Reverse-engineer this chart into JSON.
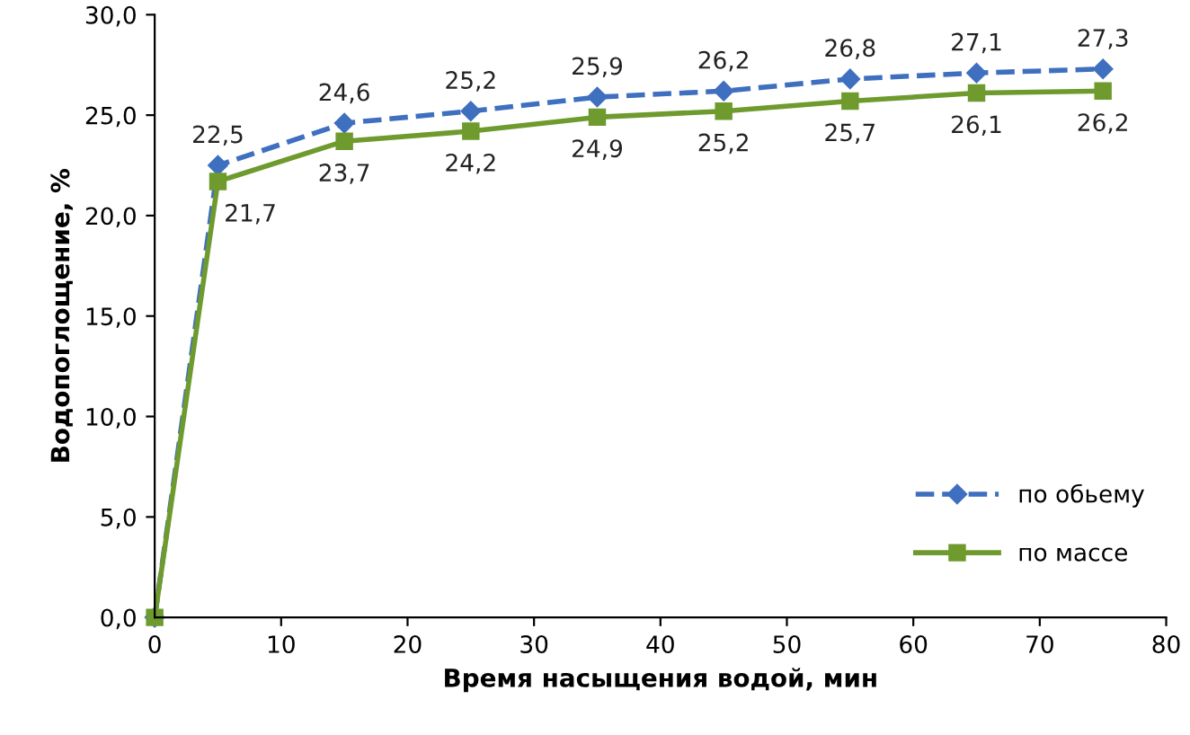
{
  "chart_data": {
    "type": "line",
    "xlabel": "Время насыщения водой, мин",
    "ylabel": "Водопоглощение, %",
    "x": [
      0,
      5,
      15,
      25,
      35,
      45,
      55,
      65,
      75
    ],
    "series": [
      {
        "name": "по обьему",
        "color": "#3f6fbf",
        "marker": "diamond",
        "line_style": "dashed",
        "values": [
          0,
          22.5,
          24.6,
          25.2,
          25.9,
          26.2,
          26.8,
          27.1,
          27.3
        ],
        "value_labels": [
          null,
          "22,5",
          "24,6",
          "25,2",
          "25,9",
          "26,2",
          "26,8",
          "27,1",
          "27,3"
        ]
      },
      {
        "name": "по массе",
        "color": "#6e9a2e",
        "marker": "square",
        "line_style": "solid",
        "values": [
          0,
          21.7,
          23.7,
          24.2,
          24.9,
          25.2,
          25.7,
          26.1,
          26.2
        ],
        "value_labels": [
          null,
          "21,7",
          "23,7",
          "24,2",
          "24,9",
          "25,2",
          "25,7",
          "26,1",
          "26,2"
        ]
      }
    ],
    "xlim": [
      0,
      80
    ],
    "xticks": [
      0,
      10,
      20,
      30,
      40,
      50,
      60,
      70,
      80
    ],
    "ylim": [
      0,
      30
    ],
    "yticks": [
      {
        "value": 0,
        "label": "0,0"
      },
      {
        "value": 5,
        "label": "5,0"
      },
      {
        "value": 10,
        "label": "10,0"
      },
      {
        "value": 15,
        "label": "15,0"
      },
      {
        "value": 20,
        "label": "20,0"
      },
      {
        "value": 25,
        "label": "25,0"
      },
      {
        "value": 30,
        "label": "30,0"
      }
    ],
    "grid": false,
    "legend": "bottom right"
  }
}
